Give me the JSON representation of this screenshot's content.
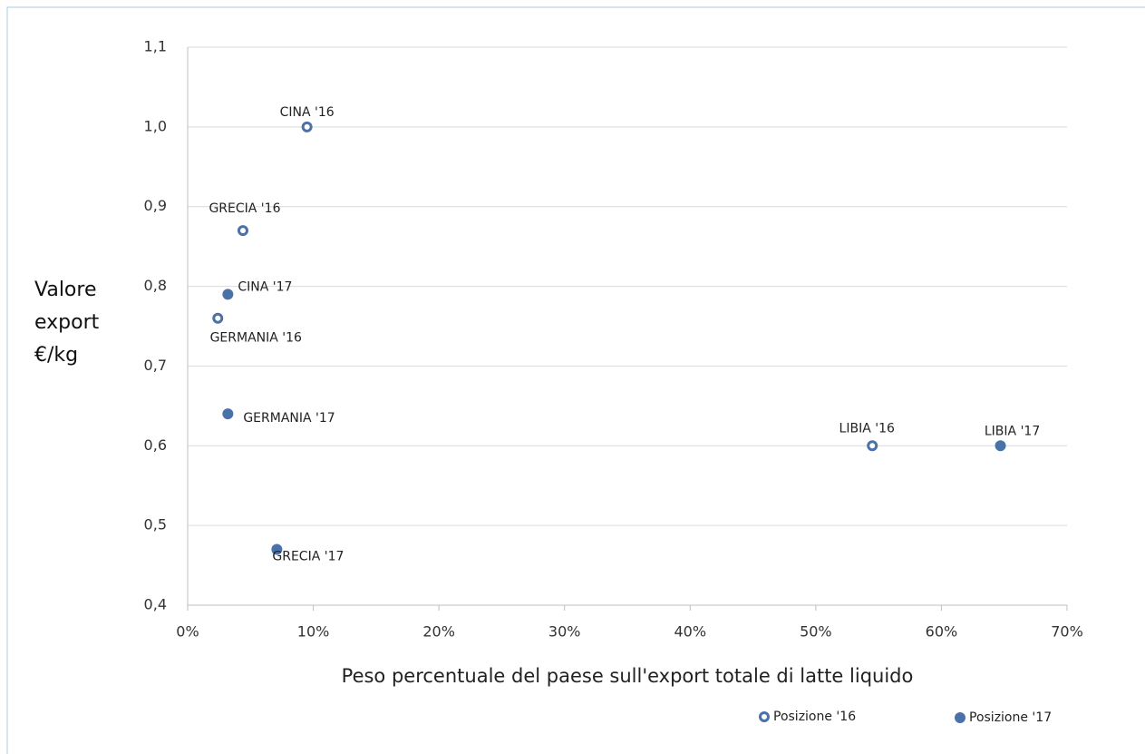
{
  "chart_data": {
    "type": "scatter",
    "x_label": "Peso percentuale del paese sull'export totale di latte liquido",
    "y_label": "Valore export €/kg",
    "xlim": [
      0,
      70
    ],
    "xticks": [
      {
        "value": 0,
        "label": "0%"
      },
      {
        "value": 10,
        "label": "10%"
      },
      {
        "value": 20,
        "label": "20%"
      },
      {
        "value": 30,
        "label": "30%"
      },
      {
        "value": 40,
        "label": "40%"
      },
      {
        "value": 50,
        "label": "50%"
      },
      {
        "value": 60,
        "label": "60%"
      },
      {
        "value": 70,
        "label": "70%"
      }
    ],
    "ylim": [
      0.4,
      1.1
    ],
    "yticks": [
      {
        "value": 0.4,
        "label": "0,4"
      },
      {
        "value": 0.5,
        "label": "0,5"
      },
      {
        "value": 0.6,
        "label": "0,6"
      },
      {
        "value": 0.7,
        "label": "0,7"
      },
      {
        "value": 0.8,
        "label": "0,8"
      },
      {
        "value": 0.9,
        "label": "0,9"
      },
      {
        "value": 1.0,
        "label": "1,0"
      },
      {
        "value": 1.1,
        "label": "1,1"
      }
    ],
    "grid": true,
    "series": [
      {
        "name": "Posizione '16",
        "color": "#4a72a8",
        "marker": "hollow",
        "labels": [
          "CINA '16",
          "GRECIA '16",
          "GERMANIA '16",
          "LIBIA '16"
        ],
        "x": [
          9.5,
          4.4,
          2.4,
          54.5
        ],
        "values": [
          1.0,
          0.87,
          0.76,
          0.6
        ]
      },
      {
        "name": "Posizione '17",
        "color": "#4a72a8",
        "marker": "filled",
        "labels": [
          "CINA '17",
          "GERMANIA '17",
          "GRECIA '17",
          "LIBIA '17"
        ],
        "x": [
          3.2,
          3.2,
          7.1,
          64.7
        ],
        "values": [
          0.79,
          0.64,
          0.47,
          0.6
        ]
      }
    ]
  }
}
